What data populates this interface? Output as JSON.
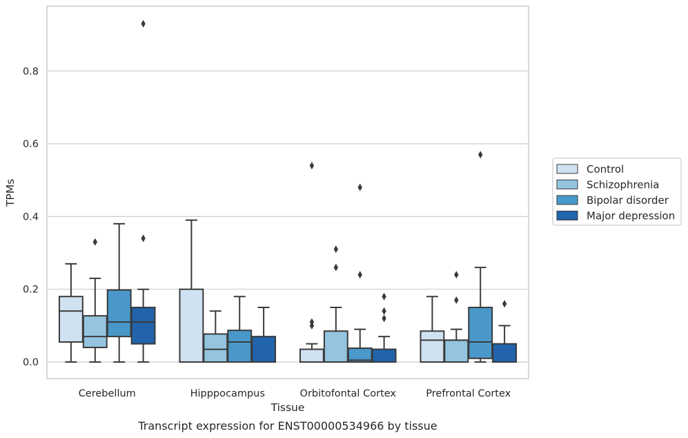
{
  "chart_data": {
    "type": "box",
    "caption": "Transcript expression for ENST00000534966 by tissue",
    "xlabel": "Tissue",
    "ylabel": "TPMs",
    "ylim": [
      -0.045,
      0.985
    ],
    "yticks": [
      0.0,
      0.2,
      0.4,
      0.6,
      0.8
    ],
    "ytick_labels": [
      "0.0",
      "0.2",
      "0.4",
      "0.6",
      "0.8"
    ],
    "grid": true,
    "legend_position": "right-outside",
    "categories": [
      "Cerebellum",
      "Hipppocampus",
      "Orbitofontal Cortex",
      "Prefrontal Cortex"
    ],
    "series": [
      {
        "name": "Control",
        "color": "#d0e1f2",
        "boxes": [
          {
            "whisker_low": 0.0,
            "q1": 0.055,
            "median": 0.14,
            "q3": 0.18,
            "whisker_high": 0.27,
            "outliers": []
          },
          {
            "whisker_low": 0.0,
            "q1": 0.0,
            "median": 0.0,
            "q3": 0.2,
            "whisker_high": 0.39,
            "outliers": []
          },
          {
            "whisker_low": 0.0,
            "q1": 0.0,
            "median": 0.0,
            "q3": 0.035,
            "whisker_high": 0.05,
            "outliers": [
              0.1,
              0.11,
              0.54
            ]
          },
          {
            "whisker_low": 0.0,
            "q1": 0.0,
            "median": 0.06,
            "q3": 0.085,
            "whisker_high": 0.18,
            "outliers": []
          }
        ]
      },
      {
        "name": "Schizophrenia",
        "color": "#94c4df",
        "boxes": [
          {
            "whisker_low": 0.0,
            "q1": 0.04,
            "median": 0.07,
            "q3": 0.127,
            "whisker_high": 0.23,
            "outliers": [
              0.33
            ]
          },
          {
            "whisker_low": 0.0,
            "q1": 0.0,
            "median": 0.035,
            "q3": 0.077,
            "whisker_high": 0.14,
            "outliers": []
          },
          {
            "whisker_low": 0.0,
            "q1": 0.0,
            "median": 0.0,
            "q3": 0.085,
            "whisker_high": 0.15,
            "outliers": [
              0.26,
              0.31
            ]
          },
          {
            "whisker_low": 0.0,
            "q1": 0.0,
            "median": 0.06,
            "q3": 0.06,
            "whisker_high": 0.09,
            "outliers": [
              0.17,
              0.24
            ]
          }
        ]
      },
      {
        "name": "Bipolar disorder",
        "color": "#4a98c9",
        "boxes": [
          {
            "whisker_low": 0.0,
            "q1": 0.07,
            "median": 0.11,
            "q3": 0.198,
            "whisker_high": 0.38,
            "outliers": []
          },
          {
            "whisker_low": 0.0,
            "q1": 0.0,
            "median": 0.055,
            "q3": 0.087,
            "whisker_high": 0.18,
            "outliers": []
          },
          {
            "whisker_low": 0.0,
            "q1": 0.0,
            "median": 0.005,
            "q3": 0.038,
            "whisker_high": 0.09,
            "outliers": [
              0.24,
              0.48
            ]
          },
          {
            "whisker_low": 0.0,
            "q1": 0.01,
            "median": 0.055,
            "q3": 0.15,
            "whisker_high": 0.26,
            "outliers": [
              0.57
            ]
          }
        ]
      },
      {
        "name": "Major depression",
        "color": "#2164ab",
        "boxes": [
          {
            "whisker_low": 0.0,
            "q1": 0.05,
            "median": 0.11,
            "q3": 0.15,
            "whisker_high": 0.2,
            "outliers": [
              0.34,
              0.93
            ]
          },
          {
            "whisker_low": 0.0,
            "q1": 0.0,
            "median": 0.0,
            "q3": 0.07,
            "whisker_high": 0.15,
            "outliers": []
          },
          {
            "whisker_low": 0.0,
            "q1": 0.0,
            "median": 0.0,
            "q3": 0.035,
            "whisker_high": 0.07,
            "outliers": [
              0.12,
              0.14,
              0.18
            ]
          },
          {
            "whisker_low": 0.0,
            "q1": 0.0,
            "median": 0.0,
            "q3": 0.05,
            "whisker_high": 0.1,
            "outliers": [
              0.16
            ]
          }
        ]
      }
    ]
  }
}
